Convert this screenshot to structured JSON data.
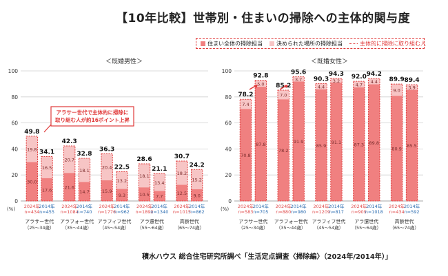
{
  "title": "【10年比較】世帯別・住まいの掃除への主体的関与度",
  "legend": {
    "items": [
      {
        "label": "住まい全体の掃除担当",
        "color": "#f08080"
      },
      {
        "label": "決められた場所の掃除担当",
        "color": "#f7c5c5"
      },
      {
        "label": "主体的に掃除に取り組む人",
        "color": "#e03a3a"
      }
    ]
  },
  "footer": "積水ハウス 総合住宅研究所調べ「生活定点調査〈掃除編〉（2024年/2014年）」",
  "chart_data": [
    {
      "type": "bar",
      "stacked": true,
      "title": "＜既婚男性＞",
      "ylim": [
        0,
        100
      ],
      "yticks": [
        0,
        20,
        40,
        60,
        80,
        100
      ],
      "yunit": "(%)",
      "groups": [
        "アラサー世代",
        "アラフォー世代",
        "アラフィフ世代",
        "アラ還世代",
        "高齢世代"
      ],
      "group_ranges": [
        "（25～34歳）",
        "（35～44歳）",
        "（45～54歳）",
        "（55～64歳）",
        "（65～74歳）"
      ],
      "bars": [
        {
          "year": "2024年",
          "n": "n=434",
          "whole": 30.0,
          "part": 19.8,
          "total": 49.8
        },
        {
          "year": "2014年",
          "n": "n=455",
          "whole": 17.6,
          "part": 16.5,
          "total": 34.1
        },
        {
          "year": "2024年",
          "n": "n=1084",
          "whole": 21.6,
          "part": 20.7,
          "total": 42.3
        },
        {
          "year": "2014年",
          "n": "n=740",
          "whole": 14.7,
          "part": 18.1,
          "total": 32.8
        },
        {
          "year": "2024年",
          "n": "n=1776",
          "whole": 15.9,
          "part": 20.4,
          "total": 36.3
        },
        {
          "year": "2014年",
          "n": "n=962",
          "whole": 9.3,
          "part": 13.2,
          "total": 22.5
        },
        {
          "year": "2024年",
          "n": "n=1892",
          "whole": 10.5,
          "part": 18.1,
          "total": 28.6
        },
        {
          "year": "2014年",
          "n": "n=1340",
          "whole": 7.7,
          "part": 13.4,
          "total": 21.1
        },
        {
          "year": "2024年",
          "n": "n=1015",
          "whole": 12.5,
          "part": 18.2,
          "total": 30.7
        },
        {
          "year": "2014年",
          "n": "n=862",
          "whole": 9.0,
          "part": 15.2,
          "total": 24.2
        }
      ],
      "annotation": "アラサー世代で主体的に掃除に取り組む人が約16ポイント上昇"
    },
    {
      "type": "bar",
      "stacked": true,
      "title": "＜既婚女性＞",
      "ylim": [
        0,
        100
      ],
      "yticks": [
        0,
        20,
        40,
        60,
        80,
        100
      ],
      "yunit": "(%)",
      "groups": [
        "アラサー世代",
        "アラフォー世代",
        "アラフィフ世代",
        "アラ還世代",
        "高齢世代"
      ],
      "group_ranges": [
        "（25～34歳）",
        "（35～44歳）",
        "（45～54歳）",
        "（55～64歳）",
        "（65～74歳）"
      ],
      "bars": [
        {
          "year": "2024年",
          "n": "n=583",
          "whole": 70.8,
          "part": 7.4,
          "total": 78.2
        },
        {
          "year": "2014年",
          "n": "n=705",
          "whole": 87.8,
          "part": 5.0,
          "total": 92.8
        },
        {
          "year": "2024年",
          "n": "n=880",
          "whole": 78.2,
          "part": 7.0,
          "total": 85.2
        },
        {
          "year": "2014年",
          "n": "n=980",
          "whole": 91.9,
          "part": 3.7,
          "total": 95.6
        },
        {
          "year": "2024年",
          "n": "n=1209",
          "whole": 85.9,
          "part": 4.4,
          "total": 90.3
        },
        {
          "year": "2014年",
          "n": "n=817",
          "whole": 91.1,
          "part": 3.2,
          "total": 94.3
        },
        {
          "year": "2024年",
          "n": "n=909",
          "whole": 87.3,
          "part": 4.7,
          "total": 92.0
        },
        {
          "year": "2014年",
          "n": "n=1018",
          "whole": 89.8,
          "part": 4.4,
          "total": 94.2
        },
        {
          "year": "2024年",
          "n": "n=434",
          "whole": 80.9,
          "part": 9.0,
          "total": 89.9
        },
        {
          "year": "2014年",
          "n": "n=592",
          "whole": 85.5,
          "part": 3.9,
          "total": 89.4
        }
      ]
    }
  ]
}
